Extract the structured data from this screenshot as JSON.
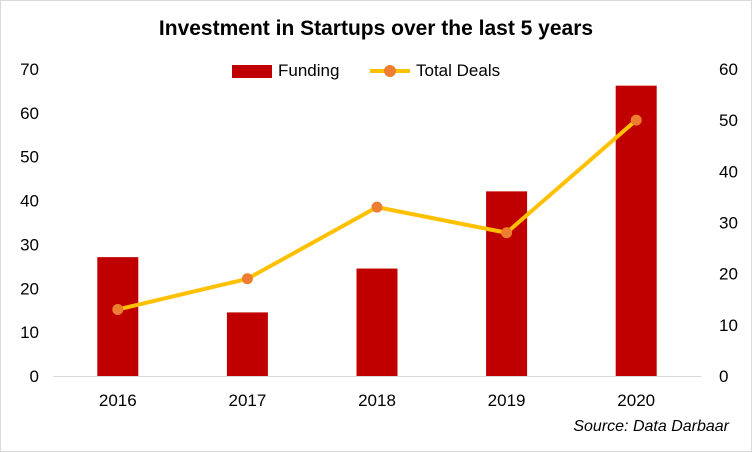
{
  "chart_data": {
    "type": "bar+line",
    "title": "Investment in Startups over the last 5 years",
    "categories": [
      "2016",
      "2017",
      "2018",
      "2019",
      "2020"
    ],
    "series": [
      {
        "name": "Funding",
        "type": "bar",
        "axis": "left",
        "color": "#c00000",
        "values": [
          27.1,
          14.5,
          24.5,
          42.1,
          66.2
        ]
      },
      {
        "name": "Total Deals",
        "type": "line",
        "axis": "right",
        "color": "#ffc000",
        "marker_color": "#ed7d31",
        "values": [
          13,
          19,
          33,
          28,
          50
        ]
      }
    ],
    "y_left": {
      "ylim": [
        0,
        70
      ],
      "ticks": [
        "0",
        "10",
        "20",
        "30",
        "40",
        "50",
        "60",
        "70"
      ]
    },
    "y_right": {
      "ylim": [
        0,
        60
      ],
      "ticks": [
        "0",
        "10",
        "20",
        "30",
        "40",
        "50",
        "60"
      ]
    },
    "legend_position": "top-center",
    "grid": false
  },
  "source_text": "Source: Data Darbaar"
}
